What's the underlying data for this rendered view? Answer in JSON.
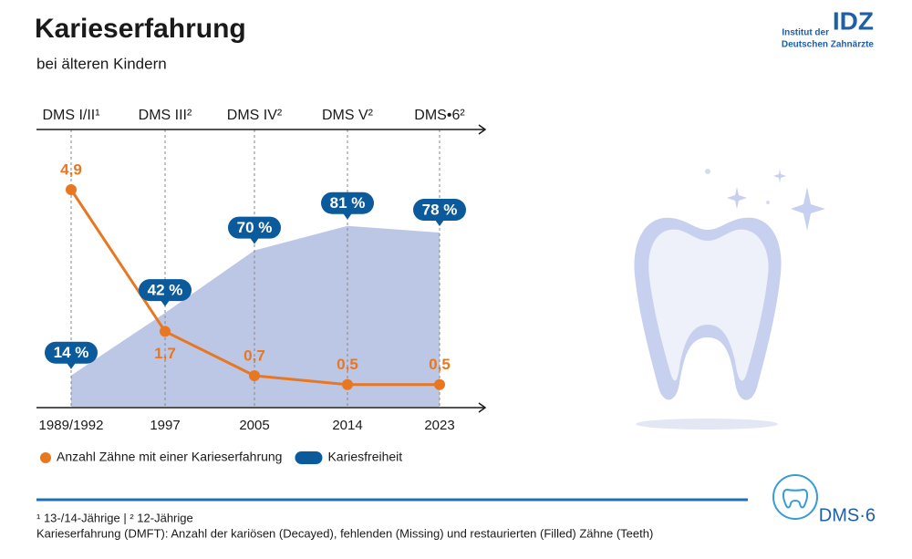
{
  "chart_data": {
    "type": "line",
    "title": "Karieserfahrung",
    "subtitle": "bei älteren Kindern",
    "categories": [
      "1989/1992",
      "1997",
      "2005",
      "2014",
      "2023"
    ],
    "survey_labels": [
      "DMS I/II¹",
      "DMS III²",
      "DMS IV²",
      "DMS V²",
      "DMS•6²"
    ],
    "ylim": [
      0,
      6.3
    ],
    "y2lim": [
      0,
      125
    ],
    "series": [
      {
        "name": "Kariesfreiheit",
        "type": "area",
        "axis": "y2",
        "color": "#bcc6e5",
        "badge_color": "#0a5a9c",
        "values": [
          14,
          42,
          70,
          81,
          78
        ],
        "value_labels": [
          "14 %",
          "42 %",
          "70 %",
          "81 %",
          "78 %"
        ]
      },
      {
        "name": "Anzahl Zähne mit einer Karieserfahrung",
        "type": "line",
        "color": "#e87722",
        "values": [
          4.9,
          1.7,
          0.7,
          0.5,
          0.5
        ],
        "value_labels": [
          "4,9",
          "1,7",
          "0,7",
          "0,5",
          "0,5"
        ]
      }
    ],
    "legend_order": [
      1,
      0
    ],
    "notes": [
      "¹ 13-/14-Jährige | ² 12-Jährige",
      "Karieserfahrung (DMFT): Anzahl der kariösen (Decayed), fehlenden (Missing) und restaurierten (Filled) Zähne (Teeth)"
    ]
  },
  "branding": {
    "institute": [
      "Institut der",
      "Deutschen Zahnärzte"
    ],
    "mark": "IDZ",
    "study": "DMS·6"
  }
}
